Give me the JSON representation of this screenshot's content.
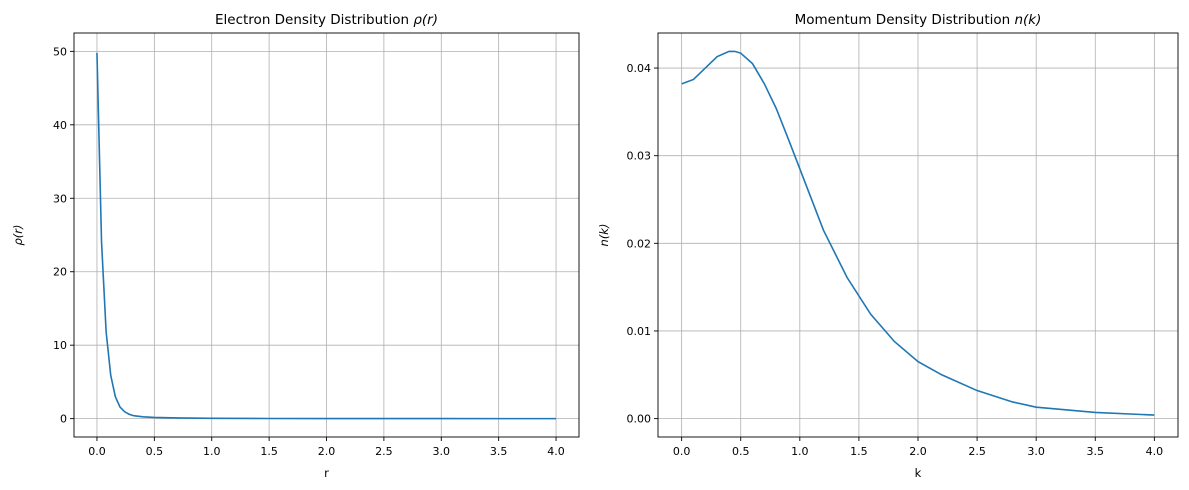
{
  "chart_data": [
    {
      "type": "line",
      "title": "Electron Density Distribution",
      "title_math": "ρ(r)",
      "xlabel": "r",
      "ylabel": "ρ(r)",
      "xlim": [
        -0.2,
        4.2
      ],
      "ylim": [
        -2.5,
        52.5
      ],
      "xticks": [
        0,
        0.5,
        1,
        1.5,
        2,
        2.5,
        3,
        3.5,
        4
      ],
      "xtick_labels": [
        "0.0",
        "0.5",
        "1.0",
        "1.5",
        "2.0",
        "2.5",
        "3.0",
        "3.5",
        "4.0"
      ],
      "yticks": [
        0,
        10,
        20,
        30,
        40,
        50
      ],
      "ytick_labels": [
        "0",
        "10",
        "20",
        "30",
        "40",
        "50"
      ],
      "grid": true,
      "line_color": "#1f77b4",
      "series": [
        {
          "x": [
            0.0,
            0.04,
            0.08,
            0.12,
            0.16,
            0.2,
            0.24,
            0.28,
            0.32,
            0.4,
            0.5,
            0.7,
            1.0,
            1.5,
            2.0,
            2.5,
            3.0,
            3.5,
            4.0
          ],
          "y": [
            49.8,
            24.0,
            11.8,
            5.9,
            3.0,
            1.6,
            0.95,
            0.6,
            0.4,
            0.25,
            0.17,
            0.1,
            0.05,
            0.02,
            0.01,
            0.005,
            0.003,
            0.002,
            0.001
          ]
        }
      ]
    },
    {
      "type": "line",
      "title": "Momentum Density Distribution",
      "title_math": "n(k)",
      "xlabel": "k",
      "ylabel": "n(k)",
      "xlim": [
        -0.2,
        4.2
      ],
      "ylim": [
        -0.0021,
        0.044
      ],
      "xticks": [
        0,
        0.5,
        1,
        1.5,
        2,
        2.5,
        3,
        3.5,
        4
      ],
      "xtick_labels": [
        "0.0",
        "0.5",
        "1.0",
        "1.5",
        "2.0",
        "2.5",
        "3.0",
        "3.5",
        "4.0"
      ],
      "yticks": [
        0,
        0.01,
        0.02,
        0.03,
        0.04
      ],
      "ytick_labels": [
        "0.00",
        "0.01",
        "0.02",
        "0.03",
        "0.04"
      ],
      "grid": true,
      "line_color": "#1f77b4",
      "series": [
        {
          "x": [
            0.0,
            0.1,
            0.2,
            0.3,
            0.4,
            0.45,
            0.5,
            0.6,
            0.7,
            0.8,
            0.9,
            1.0,
            1.2,
            1.4,
            1.6,
            1.8,
            2.0,
            2.2,
            2.5,
            2.8,
            3.0,
            3.5,
            4.0
          ],
          "y": [
            0.0382,
            0.0387,
            0.04,
            0.0413,
            0.0419,
            0.0419,
            0.0417,
            0.0405,
            0.0382,
            0.0354,
            0.032,
            0.0285,
            0.0215,
            0.0161,
            0.0119,
            0.0088,
            0.0065,
            0.005,
            0.0032,
            0.0019,
            0.0013,
            0.0007,
            0.0004
          ]
        }
      ]
    }
  ]
}
